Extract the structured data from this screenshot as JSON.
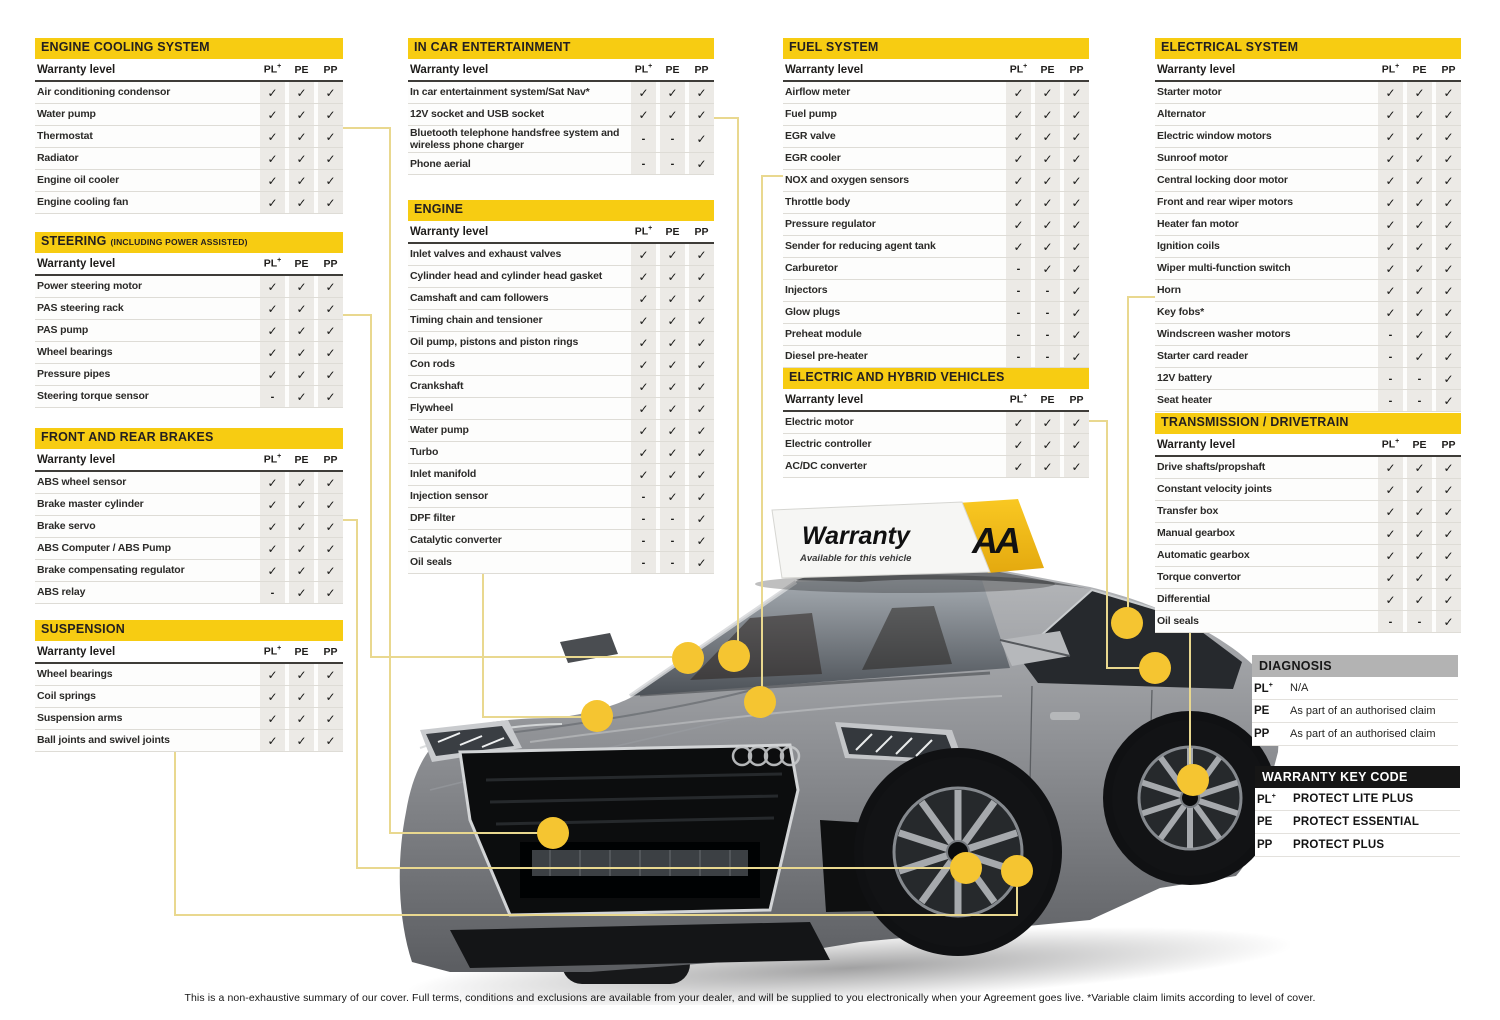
{
  "page": {
    "disclaimer": "This is a non-exhaustive summary of our cover. Full terms, conditions and exclusions are available from your dealer, and will be supplied to you electronically when your Agreement goes live. *Variable claim limits according to level of cover."
  },
  "colors": {
    "header_yellow": "#F7CC12",
    "header_text": "#231F20",
    "mark_bg": "#ECEAE6",
    "line_yellow": "#E9D88F",
    "dot_yellow": "#F5C531",
    "diagnosis_gray": "#B3B3B3",
    "keycode_black": "#161616"
  },
  "warranty_level_label": "Warranty level",
  "level_columns": [
    "PL+",
    "PE",
    "PP"
  ],
  "tables": [
    {
      "title": "ENGINE COOLING SYSTEM",
      "suffix": "",
      "rows": [
        {
          "label": "Air conditioning condensor",
          "marks": [
            "✓",
            "✓",
            "✓"
          ]
        },
        {
          "label": "Water pump",
          "marks": [
            "✓",
            "✓",
            "✓"
          ]
        },
        {
          "label": "Thermostat",
          "marks": [
            "✓",
            "✓",
            "✓"
          ]
        },
        {
          "label": "Radiator",
          "marks": [
            "✓",
            "✓",
            "✓"
          ]
        },
        {
          "label": "Engine oil cooler",
          "marks": [
            "✓",
            "✓",
            "✓"
          ]
        },
        {
          "label": "Engine cooling fan",
          "marks": [
            "✓",
            "✓",
            "✓"
          ]
        }
      ]
    },
    {
      "title": "STEERING",
      "suffix": "(INCLUDING POWER ASSISTED)",
      "rows": [
        {
          "label": "Power steering motor",
          "marks": [
            "✓",
            "✓",
            "✓"
          ]
        },
        {
          "label": "PAS steering rack",
          "marks": [
            "✓",
            "✓",
            "✓"
          ]
        },
        {
          "label": "PAS pump",
          "marks": [
            "✓",
            "✓",
            "✓"
          ]
        },
        {
          "label": "Wheel bearings",
          "marks": [
            "✓",
            "✓",
            "✓"
          ]
        },
        {
          "label": "Pressure pipes",
          "marks": [
            "✓",
            "✓",
            "✓"
          ]
        },
        {
          "label": "Steering torque sensor",
          "marks": [
            "-",
            "✓",
            "✓"
          ]
        }
      ]
    },
    {
      "title": "FRONT AND REAR BRAKES",
      "suffix": "",
      "rows": [
        {
          "label": "ABS wheel sensor",
          "marks": [
            "✓",
            "✓",
            "✓"
          ]
        },
        {
          "label": "Brake master cylinder",
          "marks": [
            "✓",
            "✓",
            "✓"
          ]
        },
        {
          "label": "Brake servo",
          "marks": [
            "✓",
            "✓",
            "✓"
          ]
        },
        {
          "label": "ABS Computer / ABS Pump",
          "marks": [
            "✓",
            "✓",
            "✓"
          ]
        },
        {
          "label": "Brake compensating regulator",
          "marks": [
            "✓",
            "✓",
            "✓"
          ]
        },
        {
          "label": "ABS relay",
          "marks": [
            "-",
            "✓",
            "✓"
          ]
        }
      ]
    },
    {
      "title": "SUSPENSION",
      "suffix": "",
      "rows": [
        {
          "label": "Wheel bearings",
          "marks": [
            "✓",
            "✓",
            "✓"
          ]
        },
        {
          "label": "Coil springs",
          "marks": [
            "✓",
            "✓",
            "✓"
          ]
        },
        {
          "label": "Suspension arms",
          "marks": [
            "✓",
            "✓",
            "✓"
          ]
        },
        {
          "label": "Ball joints and swivel joints",
          "marks": [
            "✓",
            "✓",
            "✓"
          ]
        }
      ]
    },
    {
      "title": "IN CAR ENTERTAINMENT",
      "suffix": "",
      "rows": [
        {
          "label": "In car entertainment system/Sat Nav*",
          "marks": [
            "✓",
            "✓",
            "✓"
          ]
        },
        {
          "label": "12V socket and USB socket",
          "marks": [
            "✓",
            "✓",
            "✓"
          ]
        },
        {
          "label": "Bluetooth telephone handsfree system and wireless phone charger",
          "marks": [
            "-",
            "-",
            "✓"
          ]
        },
        {
          "label": "Phone aerial",
          "marks": [
            "-",
            "-",
            "✓"
          ]
        }
      ]
    },
    {
      "title": "ENGINE",
      "suffix": "",
      "rows": [
        {
          "label": "Inlet valves and exhaust valves",
          "marks": [
            "✓",
            "✓",
            "✓"
          ]
        },
        {
          "label": "Cylinder head and cylinder head gasket",
          "marks": [
            "✓",
            "✓",
            "✓"
          ]
        },
        {
          "label": "Camshaft and cam followers",
          "marks": [
            "✓",
            "✓",
            "✓"
          ]
        },
        {
          "label": "Timing chain and tensioner",
          "marks": [
            "✓",
            "✓",
            "✓"
          ]
        },
        {
          "label": "Oil pump, pistons and piston rings",
          "marks": [
            "✓",
            "✓",
            "✓"
          ]
        },
        {
          "label": "Con rods",
          "marks": [
            "✓",
            "✓",
            "✓"
          ]
        },
        {
          "label": "Crankshaft",
          "marks": [
            "✓",
            "✓",
            "✓"
          ]
        },
        {
          "label": "Flywheel",
          "marks": [
            "✓",
            "✓",
            "✓"
          ]
        },
        {
          "label": "Water pump",
          "marks": [
            "✓",
            "✓",
            "✓"
          ]
        },
        {
          "label": "Turbo",
          "marks": [
            "✓",
            "✓",
            "✓"
          ]
        },
        {
          "label": "Inlet manifold",
          "marks": [
            "✓",
            "✓",
            "✓"
          ]
        },
        {
          "label": "Injection sensor",
          "marks": [
            "-",
            "✓",
            "✓"
          ]
        },
        {
          "label": "DPF filter",
          "marks": [
            "-",
            "-",
            "✓"
          ]
        },
        {
          "label": "Catalytic converter",
          "marks": [
            "-",
            "-",
            "✓"
          ]
        },
        {
          "label": "Oil seals",
          "marks": [
            "-",
            "-",
            "✓"
          ]
        }
      ]
    },
    {
      "title": "FUEL SYSTEM",
      "suffix": "",
      "rows": [
        {
          "label": "Airflow meter",
          "marks": [
            "✓",
            "✓",
            "✓"
          ]
        },
        {
          "label": "Fuel pump",
          "marks": [
            "✓",
            "✓",
            "✓"
          ]
        },
        {
          "label": "EGR valve",
          "marks": [
            "✓",
            "✓",
            "✓"
          ]
        },
        {
          "label": "EGR cooler",
          "marks": [
            "✓",
            "✓",
            "✓"
          ]
        },
        {
          "label": "NOX and oxygen sensors",
          "marks": [
            "✓",
            "✓",
            "✓"
          ]
        },
        {
          "label": "Throttle body",
          "marks": [
            "✓",
            "✓",
            "✓"
          ]
        },
        {
          "label": "Pressure regulator",
          "marks": [
            "✓",
            "✓",
            "✓"
          ]
        },
        {
          "label": "Sender for reducing agent tank",
          "marks": [
            "✓",
            "✓",
            "✓"
          ]
        },
        {
          "label": "Carburetor",
          "marks": [
            "-",
            "✓",
            "✓"
          ]
        },
        {
          "label": "Injectors",
          "marks": [
            "-",
            "-",
            "✓"
          ]
        },
        {
          "label": "Glow plugs",
          "marks": [
            "-",
            "-",
            "✓"
          ]
        },
        {
          "label": "Preheat module",
          "marks": [
            "-",
            "-",
            "✓"
          ]
        },
        {
          "label": "Diesel pre-heater",
          "marks": [
            "-",
            "-",
            "✓"
          ]
        }
      ]
    },
    {
      "title": "ELECTRIC AND HYBRID VEHICLES",
      "suffix": "",
      "rows": [
        {
          "label": "Electric motor",
          "marks": [
            "✓",
            "✓",
            "✓"
          ]
        },
        {
          "label": "Electric controller",
          "marks": [
            "✓",
            "✓",
            "✓"
          ]
        },
        {
          "label": "AC/DC converter",
          "marks": [
            "✓",
            "✓",
            "✓"
          ]
        }
      ]
    },
    {
      "title": "ELECTRICAL SYSTEM",
      "suffix": "",
      "rows": [
        {
          "label": "Starter motor",
          "marks": [
            "✓",
            "✓",
            "✓"
          ]
        },
        {
          "label": "Alternator",
          "marks": [
            "✓",
            "✓",
            "✓"
          ]
        },
        {
          "label": "Electric window motors",
          "marks": [
            "✓",
            "✓",
            "✓"
          ]
        },
        {
          "label": "Sunroof motor",
          "marks": [
            "✓",
            "✓",
            "✓"
          ]
        },
        {
          "label": "Central locking door motor",
          "marks": [
            "✓",
            "✓",
            "✓"
          ]
        },
        {
          "label": "Front and rear wiper motors",
          "marks": [
            "✓",
            "✓",
            "✓"
          ]
        },
        {
          "label": "Heater fan motor",
          "marks": [
            "✓",
            "✓",
            "✓"
          ]
        },
        {
          "label": "Ignition coils",
          "marks": [
            "✓",
            "✓",
            "✓"
          ]
        },
        {
          "label": "Wiper multi-function switch",
          "marks": [
            "✓",
            "✓",
            "✓"
          ]
        },
        {
          "label": "Horn",
          "marks": [
            "✓",
            "✓",
            "✓"
          ]
        },
        {
          "label": "Key fobs*",
          "marks": [
            "✓",
            "✓",
            "✓"
          ]
        },
        {
          "label": "Windscreen washer motors",
          "marks": [
            "-",
            "✓",
            "✓"
          ]
        },
        {
          "label": "Starter card reader",
          "marks": [
            "-",
            "✓",
            "✓"
          ]
        },
        {
          "label": "12V battery",
          "marks": [
            "-",
            "-",
            "✓"
          ]
        },
        {
          "label": "Seat heater",
          "marks": [
            "-",
            "-",
            "✓"
          ]
        }
      ]
    },
    {
      "title": "TRANSMISSION / DRIVETRAIN",
      "suffix": "",
      "rows": [
        {
          "label": "Drive shafts/propshaft",
          "marks": [
            "✓",
            "✓",
            "✓"
          ]
        },
        {
          "label": "Constant velocity joints",
          "marks": [
            "✓",
            "✓",
            "✓"
          ]
        },
        {
          "label": "Transfer box",
          "marks": [
            "✓",
            "✓",
            "✓"
          ]
        },
        {
          "label": "Manual gearbox",
          "marks": [
            "✓",
            "✓",
            "✓"
          ]
        },
        {
          "label": "Automatic gearbox",
          "marks": [
            "✓",
            "✓",
            "✓"
          ]
        },
        {
          "label": "Torque convertor",
          "marks": [
            "✓",
            "✓",
            "✓"
          ]
        },
        {
          "label": "Differential",
          "marks": [
            "✓",
            "✓",
            "✓"
          ]
        },
        {
          "label": "Oil seals",
          "marks": [
            "-",
            "-",
            "✓"
          ]
        }
      ]
    }
  ],
  "diagnosis": {
    "title": "DIAGNOSIS",
    "rows": [
      {
        "code": "PL+",
        "text": "N/A"
      },
      {
        "code": "PE",
        "text": "As part of an authorised claim"
      },
      {
        "code": "PP",
        "text": "As part of an authorised claim"
      }
    ]
  },
  "key_code": {
    "title": "WARRANTY KEY CODE",
    "rows": [
      {
        "code": "PL+",
        "text": "PROTECT LITE PLUS"
      },
      {
        "code": "PE",
        "text": "PROTECT ESSENTIAL"
      },
      {
        "code": "PP",
        "text": "PROTECT PLUS"
      }
    ]
  },
  "roof_sign": {
    "title": "Warranty",
    "subtitle": "Available for this vehicle",
    "logo": "AA"
  }
}
